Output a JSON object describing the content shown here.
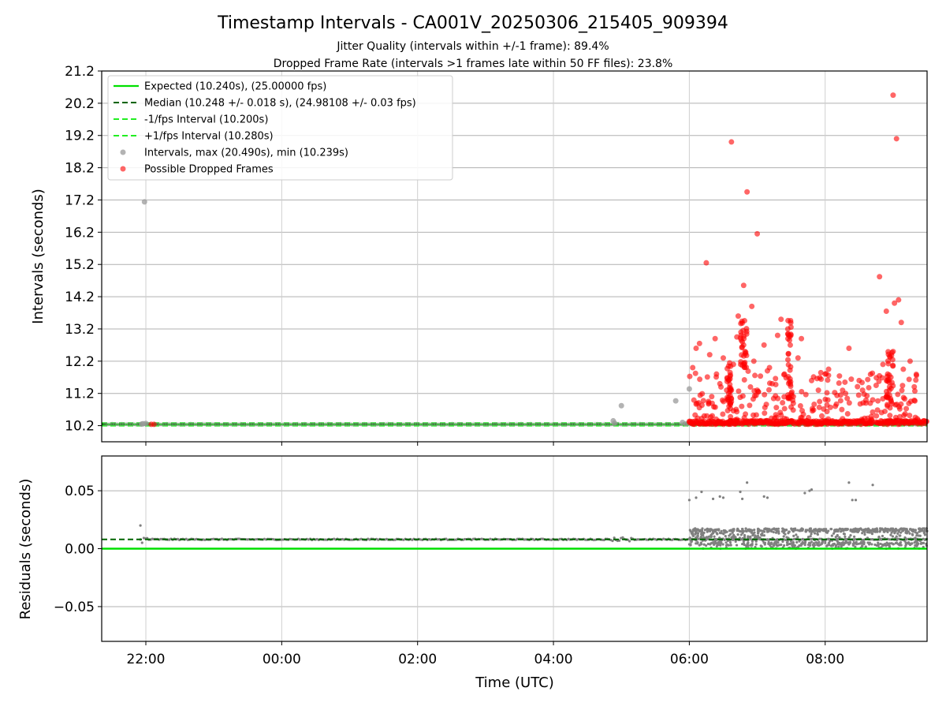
{
  "chart_data": {
    "type": "scatter",
    "title": "Timestamp Intervals - CA001V_20250306_215405_909394",
    "subtitle_lines": [
      "Jitter Quality (intervals within +/-1 frame): 89.4%",
      "Dropped Frame Rate (intervals >1 frames late within 50 FF files): 23.8%"
    ],
    "xlabel": "Time (UTC)",
    "xticks": [
      {
        "hours": 0,
        "label": "22:00"
      },
      {
        "hours": 2,
        "label": "00:00"
      },
      {
        "hours": 4,
        "label": "02:00"
      },
      {
        "hours": 6,
        "label": "04:00"
      },
      {
        "hours": 8,
        "label": "06:00"
      },
      {
        "hours": 10,
        "label": "08:00"
      }
    ],
    "xlim_hours": [
      -0.65,
      11.5
    ],
    "grid": true,
    "legend_placement": "upper-left",
    "colors": {
      "expected": "#00e000",
      "median": "#006400",
      "fps_interval": "#22ee22",
      "intervals": "#999999",
      "dropped": "#ff0000",
      "residuals": "#808080"
    },
    "top_panel": {
      "ylabel": "Intervals (seconds)",
      "ylim": [
        9.7,
        21.2
      ],
      "yticks": [
        10.2,
        11.2,
        12.2,
        13.2,
        14.2,
        15.2,
        16.2,
        17.2,
        18.2,
        19.2,
        20.2,
        21.2
      ],
      "ytick_labels": [
        "10.2",
        "11.2",
        "12.2",
        "13.2",
        "14.2",
        "15.2",
        "16.2",
        "17.2",
        "18.2",
        "19.2",
        "20.2",
        "21.2"
      ],
      "expected": 10.24,
      "median": 10.248,
      "minus_fps": 10.2,
      "plus_fps": 10.28,
      "legend": [
        "Expected (10.240s), (25.00000 fps)",
        "Median (10.248 +/- 0.018 s), (24.98108 +/- 0.03 fps)",
        "-1/fps Interval (10.200s)",
        "+1/fps Interval (10.280s)",
        "Intervals, max (20.490s), min (10.239s)",
        "Possible Dropped Frames"
      ],
      "gray_points": [
        [
          -0.02,
          17.14
        ],
        [
          -0.04,
          10.26
        ],
        [
          0.0,
          10.27
        ],
        [
          -0.06,
          10.25
        ],
        [
          6.88,
          10.35
        ],
        [
          7.0,
          10.82
        ],
        [
          7.8,
          10.97
        ],
        [
          8.0,
          11.34
        ],
        [
          7.9,
          10.3
        ],
        [
          7.95,
          10.26
        ],
        [
          6.9,
          10.28
        ]
      ],
      "red_points": [
        [
          0.08,
          10.24
        ],
        [
          0.12,
          10.24
        ],
        [
          8.25,
          15.25
        ],
        [
          8.62,
          19.0
        ],
        [
          8.8,
          14.55
        ],
        [
          8.85,
          17.45
        ],
        [
          9.0,
          16.15
        ],
        [
          8.72,
          13.6
        ],
        [
          8.7,
          12.95
        ],
        [
          8.45,
          11.5
        ],
        [
          8.5,
          12.3
        ],
        [
          8.33,
          11.1
        ],
        [
          8.05,
          12.0
        ],
        [
          8.1,
          12.6
        ],
        [
          8.15,
          12.75
        ],
        [
          8.3,
          12.4
        ],
        [
          8.38,
          12.9
        ],
        [
          8.4,
          11.8
        ],
        [
          8.55,
          11.3
        ],
        [
          8.6,
          11.65
        ],
        [
          8.65,
          12.1
        ],
        [
          8.76,
          13.1
        ],
        [
          8.78,
          12.8
        ],
        [
          8.82,
          12.5
        ],
        [
          8.9,
          11.4
        ],
        [
          9.1,
          12.7
        ],
        [
          9.15,
          11.9
        ],
        [
          9.3,
          13.0
        ],
        [
          9.35,
          13.5
        ],
        [
          9.4,
          11.8
        ],
        [
          9.5,
          11.2
        ],
        [
          9.6,
          12.3
        ],
        [
          9.65,
          12.9
        ],
        [
          9.8,
          11.6
        ],
        [
          9.9,
          11.3
        ],
        [
          9.95,
          10.5
        ],
        [
          10.0,
          11.8
        ],
        [
          10.05,
          11.95
        ],
        [
          10.15,
          10.8
        ],
        [
          10.3,
          11.2
        ],
        [
          10.35,
          12.6
        ],
        [
          10.5,
          11.6
        ],
        [
          10.55,
          11.3
        ],
        [
          10.6,
          10.9
        ],
        [
          10.75,
          11.45
        ],
        [
          10.8,
          14.82
        ],
        [
          10.9,
          13.75
        ],
        [
          10.92,
          11.8
        ],
        [
          10.95,
          12.35
        ],
        [
          11.0,
          12.5
        ],
        [
          11.05,
          19.1
        ],
        [
          11.08,
          14.1
        ],
        [
          11.12,
          13.4
        ],
        [
          11.15,
          11.95
        ],
        [
          11.25,
          12.2
        ],
        [
          11.0,
          20.45
        ],
        [
          11.02,
          14.0
        ],
        [
          10.85,
          12.1
        ],
        [
          10.7,
          11.0
        ],
        [
          8.92,
          13.9
        ],
        [
          8.95,
          12.2
        ],
        [
          9.18,
          12.0
        ],
        [
          9.22,
          11.5
        ],
        [
          9.45,
          13.2
        ]
      ],
      "dropped_band_segments": [
        [
          8.0,
          8.75
        ],
        [
          8.78,
          9.55
        ],
        [
          9.58,
          10.7
        ],
        [
          10.75,
          11.5
        ]
      ]
    },
    "bottom_panel": {
      "ylabel": "Residuals (seconds)",
      "ylim": [
        -0.08,
        0.08
      ],
      "yticks": [
        -0.05,
        0.0,
        0.05
      ],
      "ytick_labels": [
        "−0.05",
        "0.00",
        "0.05"
      ],
      "zero_line": 0.0,
      "median_residual": 0.008,
      "outlier_points": [
        [
          -0.08,
          0.02
        ],
        [
          8.0,
          0.042
        ],
        [
          8.1,
          0.044
        ],
        [
          8.18,
          0.049
        ],
        [
          8.35,
          0.043
        ],
        [
          8.45,
          0.045
        ],
        [
          8.5,
          0.044
        ],
        [
          8.75,
          0.049
        ],
        [
          8.85,
          0.057
        ],
        [
          8.78,
          0.043
        ],
        [
          9.1,
          0.045
        ],
        [
          9.15,
          0.044
        ],
        [
          9.7,
          0.048
        ],
        [
          9.77,
          0.05
        ],
        [
          9.8,
          0.051
        ],
        [
          10.35,
          0.057
        ],
        [
          10.4,
          0.042
        ],
        [
          10.45,
          0.042
        ],
        [
          10.7,
          0.055
        ]
      ]
    }
  }
}
